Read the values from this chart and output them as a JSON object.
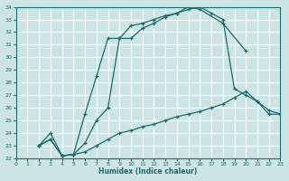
{
  "xlabel": "Humidex (Indice chaleur)",
  "xlim": [
    0,
    23
  ],
  "ylim": [
    22,
    34
  ],
  "yticks": [
    22,
    23,
    24,
    25,
    26,
    27,
    28,
    29,
    30,
    31,
    32,
    33,
    34
  ],
  "xticks": [
    0,
    1,
    2,
    3,
    4,
    5,
    6,
    7,
    8,
    9,
    10,
    11,
    12,
    13,
    14,
    15,
    16,
    17,
    18,
    19,
    20,
    21,
    22,
    23
  ],
  "bg_color": "#cde4e4",
  "grid_color": "#ffffff",
  "line_color": "#1a6b6b",
  "line1_x": [
    2,
    3,
    4,
    5,
    6,
    7,
    8,
    9,
    10,
    11,
    12,
    13,
    14,
    15,
    16,
    18,
    20
  ],
  "line1_y": [
    23.0,
    23.5,
    22.2,
    22.3,
    25.5,
    28.5,
    31.5,
    31.5,
    31.5,
    32.3,
    32.7,
    33.2,
    33.5,
    34.0,
    33.8,
    32.7,
    30.5
  ],
  "line2_x": [
    2,
    3,
    4,
    5,
    6,
    7,
    8,
    9,
    10,
    11,
    12,
    13,
    14,
    15,
    16,
    17,
    18,
    19,
    20,
    21,
    22,
    23
  ],
  "line2_y": [
    23.0,
    24.0,
    22.2,
    22.3,
    23.2,
    25.0,
    26.0,
    31.5,
    32.5,
    32.7,
    33.0,
    33.3,
    33.5,
    33.8,
    34.0,
    33.5,
    33.0,
    27.5,
    27.0,
    26.5,
    25.5,
    25.5
  ],
  "line3_x": [
    2,
    3,
    4,
    5,
    6,
    7,
    8,
    9,
    10,
    11,
    12,
    13,
    14,
    15,
    16,
    17,
    18,
    19,
    20,
    21,
    22,
    23
  ],
  "line3_y": [
    23.0,
    23.5,
    22.2,
    22.3,
    22.5,
    23.0,
    23.5,
    24.0,
    24.2,
    24.5,
    24.7,
    25.0,
    25.3,
    25.5,
    25.7,
    26.0,
    26.3,
    26.8,
    27.3,
    26.5,
    25.8,
    25.5
  ]
}
